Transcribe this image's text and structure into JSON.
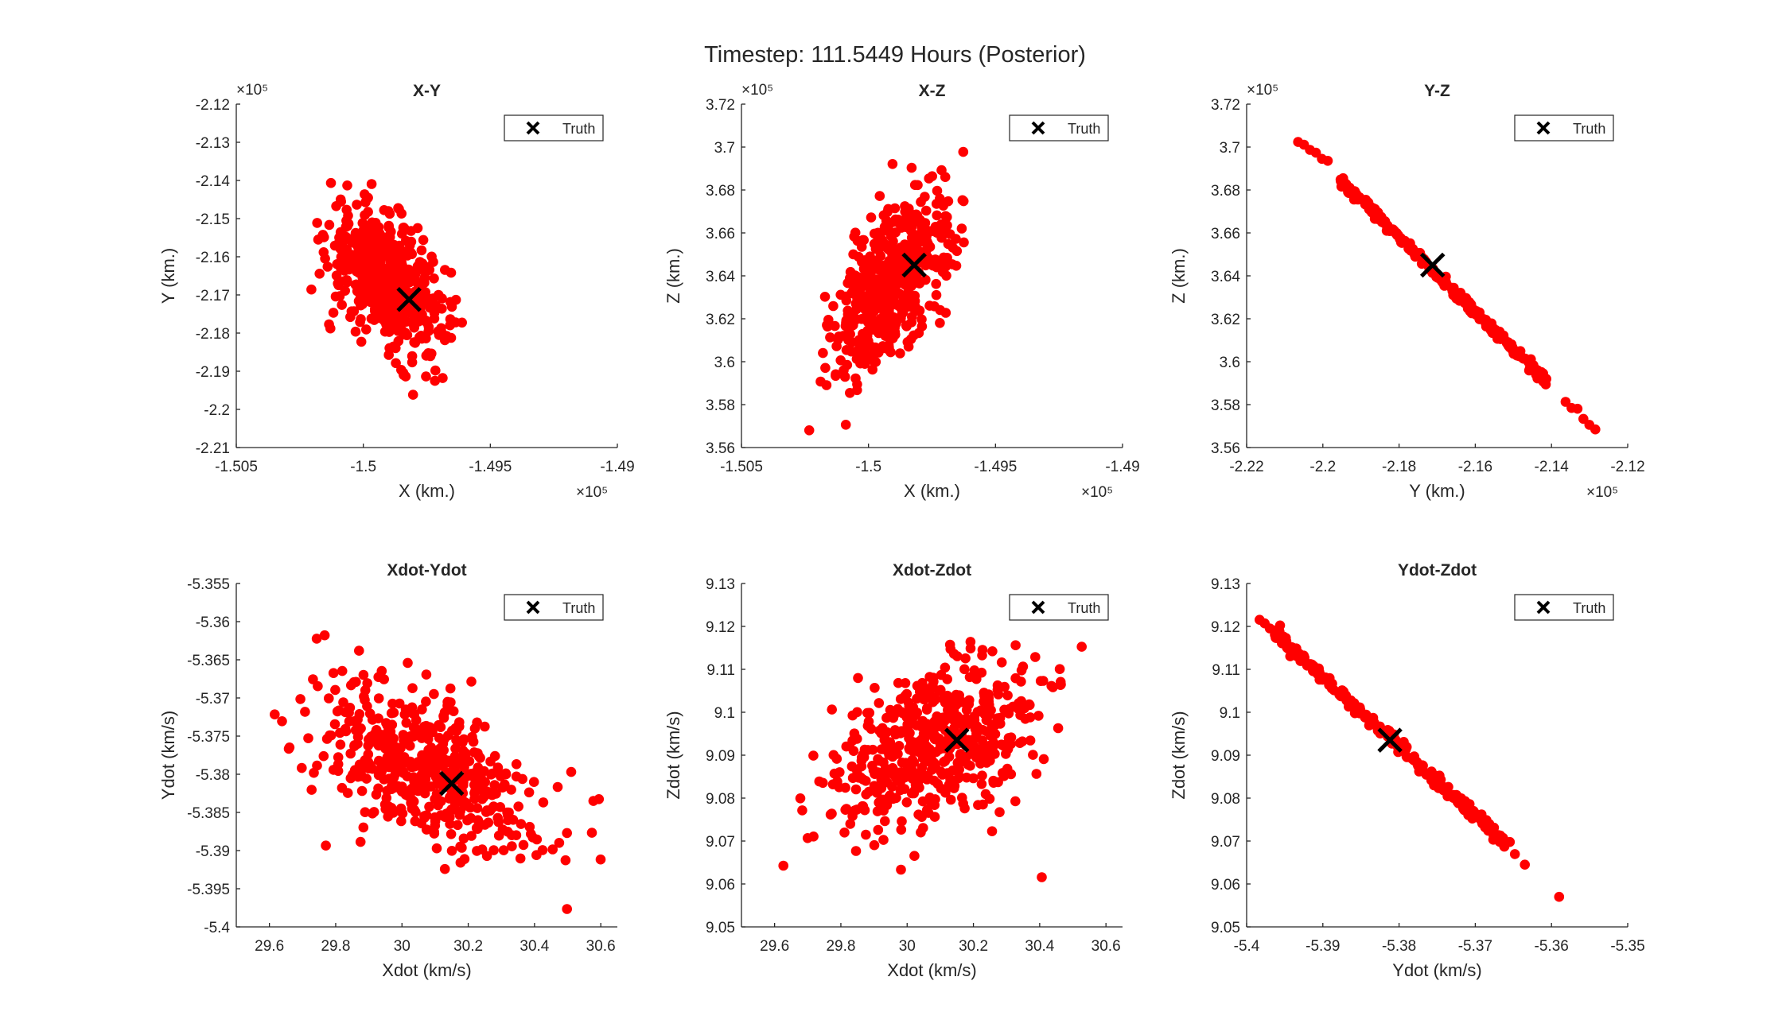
{
  "figure": {
    "title": "Timestep: 111.5449 Hours (Posterior)",
    "colors": {
      "points": "#ff0000",
      "truth": "#000000",
      "axis": "#262626"
    }
  },
  "chart_data": [
    {
      "type": "scatter",
      "title": "X-Y",
      "xlabel": "X (km.)",
      "ylabel": "Y (km.)",
      "xlim": [
        -1.505,
        -1.49
      ],
      "ylim": [
        -2.21,
        -2.12
      ],
      "xticks": [
        -1.505,
        -1.5,
        -1.495,
        -1.49
      ],
      "xtick_labels": [
        "-1.505",
        "-1.5",
        "-1.495",
        "-1.49"
      ],
      "yticks": [
        -2.21,
        -2.2,
        -2.19,
        -2.18,
        -2.17,
        -2.16,
        -2.15,
        -2.14,
        -2.13,
        -2.12
      ],
      "ytick_labels": [
        "-2.21",
        "-2.2",
        "-2.19",
        "-2.18",
        "-2.17",
        "-2.16",
        "-2.15",
        "-2.14",
        "-2.13",
        "-2.12"
      ],
      "x_exponent": "×10⁵",
      "y_exponent": "×10⁵",
      "legend": {
        "label": "Truth",
        "position": "top-right"
      },
      "truth": {
        "x": -1.4982,
        "y": -2.1712
      },
      "cloud": {
        "kind": "ellipse",
        "n": 520,
        "mx": -1.49905,
        "my": -2.166,
        "sx": 0.00115,
        "sy": 0.0097,
        "rho": -0.55
      }
    },
    {
      "type": "scatter",
      "title": "X-Z",
      "xlabel": "X (km.)",
      "ylabel": "Z (km.)",
      "xlim": [
        -1.505,
        -1.49
      ],
      "ylim": [
        3.56,
        3.72
      ],
      "xticks": [
        -1.505,
        -1.5,
        -1.495,
        -1.49
      ],
      "xtick_labels": [
        "-1.505",
        "-1.5",
        "-1.495",
        "-1.49"
      ],
      "yticks": [
        3.56,
        3.58,
        3.6,
        3.62,
        3.64,
        3.66,
        3.68,
        3.7,
        3.72
      ],
      "ytick_labels": [
        "3.56",
        "3.58",
        "3.6",
        "3.62",
        "3.64",
        "3.66",
        "3.68",
        "3.7",
        "3.72"
      ],
      "x_exponent": "×10⁵",
      "y_exponent": "×10⁵",
      "legend": {
        "label": "Truth",
        "position": "top-right"
      },
      "truth": {
        "x": -1.4982,
        "y": 3.645
      },
      "cloud": {
        "kind": "ellipse",
        "n": 520,
        "mx": -1.49905,
        "my": 3.636,
        "sx": 0.00115,
        "sy": 0.021,
        "rho": 0.55
      }
    },
    {
      "type": "scatter",
      "title": "Y-Z",
      "xlabel": "Y (km.)",
      "ylabel": "Z (km.)",
      "xlim": [
        -2.22,
        -2.12
      ],
      "ylim": [
        3.56,
        3.72
      ],
      "xticks": [
        -2.22,
        -2.2,
        -2.18,
        -2.16,
        -2.14,
        -2.12
      ],
      "xtick_labels": [
        "-2.22",
        "-2.2",
        "-2.18",
        "-2.16",
        "-2.14",
        "-2.12"
      ],
      "yticks": [
        3.56,
        3.58,
        3.6,
        3.62,
        3.64,
        3.66,
        3.68,
        3.7,
        3.72
      ],
      "ytick_labels": [
        "3.56",
        "3.58",
        "3.6",
        "3.62",
        "3.64",
        "3.66",
        "3.68",
        "3.7",
        "3.72"
      ],
      "x_exponent": "×10⁵",
      "y_exponent": "×10⁵",
      "legend": {
        "label": "Truth",
        "position": "top-right"
      },
      "truth": {
        "x": -2.1712,
        "y": 3.645
      },
      "cloud": {
        "kind": "line",
        "n": 260,
        "x0": -2.2065,
        "y0": 3.704,
        "x1": -2.1285,
        "y1": 3.5685,
        "jitter": 0.0012,
        "core": [
          0.14,
          0.84
        ]
      }
    },
    {
      "type": "scatter",
      "title": "Xdot-Ydot",
      "xlabel": "Xdot (km/s)",
      "ylabel": "Ydot (km/s)",
      "xlim": [
        29.5,
        30.65
      ],
      "ylim": [
        -5.4,
        -5.355
      ],
      "xticks": [
        29.6,
        29.8,
        30,
        30.2,
        30.4,
        30.6
      ],
      "xtick_labels": [
        "29.6",
        "29.8",
        "30",
        "30.2",
        "30.4",
        "30.6"
      ],
      "yticks": [
        -5.4,
        -5.395,
        -5.39,
        -5.385,
        -5.38,
        -5.375,
        -5.37,
        -5.365,
        -5.36,
        -5.355
      ],
      "ytick_labels": [
        "-5.4",
        "-5.395",
        "-5.39",
        "-5.385",
        "-5.38",
        "-5.375",
        "-5.37",
        "-5.365",
        "-5.36",
        "-5.355"
      ],
      "x_exponent": "",
      "y_exponent": "",
      "legend": {
        "label": "Truth",
        "position": "top-right"
      },
      "truth": {
        "x": 30.15,
        "y": -5.3812
      },
      "cloud": {
        "kind": "ellipse",
        "n": 520,
        "mx": 30.08,
        "my": -5.3795,
        "sx": 0.17,
        "sy": 0.0055,
        "rho": -0.5
      }
    },
    {
      "type": "scatter",
      "title": "Xdot-Zdot",
      "xlabel": "Xdot (km/s)",
      "ylabel": "Zdot (km/s)",
      "xlim": [
        29.5,
        30.65
      ],
      "ylim": [
        9.05,
        9.13
      ],
      "xticks": [
        29.6,
        29.8,
        30,
        30.2,
        30.4,
        30.6
      ],
      "xtick_labels": [
        "29.6",
        "29.8",
        "30",
        "30.2",
        "30.4",
        "30.6"
      ],
      "yticks": [
        9.05,
        9.06,
        9.07,
        9.08,
        9.09,
        9.1,
        9.11,
        9.12,
        9.13
      ],
      "ytick_labels": [
        "9.05",
        "9.06",
        "9.07",
        "9.08",
        "9.09",
        "9.1",
        "9.11",
        "9.12",
        "9.13"
      ],
      "x_exponent": "",
      "y_exponent": "",
      "legend": {
        "label": "Truth",
        "position": "top-right"
      },
      "truth": {
        "x": 30.15,
        "y": 9.0935
      },
      "cloud": {
        "kind": "ellipse",
        "n": 520,
        "mx": 30.08,
        "my": 9.092,
        "sx": 0.17,
        "sy": 0.0105,
        "rho": 0.5
      }
    },
    {
      "type": "scatter",
      "title": "Ydot-Zdot",
      "xlabel": "Ydot (km/s)",
      "ylabel": "Zdot (km/s)",
      "xlim": [
        -5.4,
        -5.35
      ],
      "ylim": [
        9.05,
        9.13
      ],
      "xticks": [
        -5.4,
        -5.39,
        -5.38,
        -5.37,
        -5.36,
        -5.35
      ],
      "xtick_labels": [
        "-5.4",
        "-5.39",
        "-5.38",
        "-5.37",
        "-5.36",
        "-5.35"
      ],
      "yticks": [
        9.05,
        9.06,
        9.07,
        9.08,
        9.09,
        9.1,
        9.11,
        9.12,
        9.13
      ],
      "ytick_labels": [
        "9.05",
        "9.06",
        "9.07",
        "9.08",
        "9.09",
        "9.1",
        "9.11",
        "9.12",
        "9.13"
      ],
      "x_exponent": "",
      "y_exponent": "",
      "legend": {
        "label": "Truth",
        "position": "top-right"
      },
      "truth": {
        "x": -5.3812,
        "y": 9.0935
      },
      "cloud": {
        "kind": "line",
        "n": 240,
        "x0": -5.3983,
        "y0": 9.1215,
        "x1": -5.3648,
        "y1": 9.0675,
        "jitter": 0.0008,
        "core": [
          0.06,
          0.96
        ],
        "extra": [
          {
            "x": -5.3635,
            "y": 9.0645
          },
          {
            "x": -5.359,
            "y": 9.057
          }
        ]
      }
    }
  ]
}
